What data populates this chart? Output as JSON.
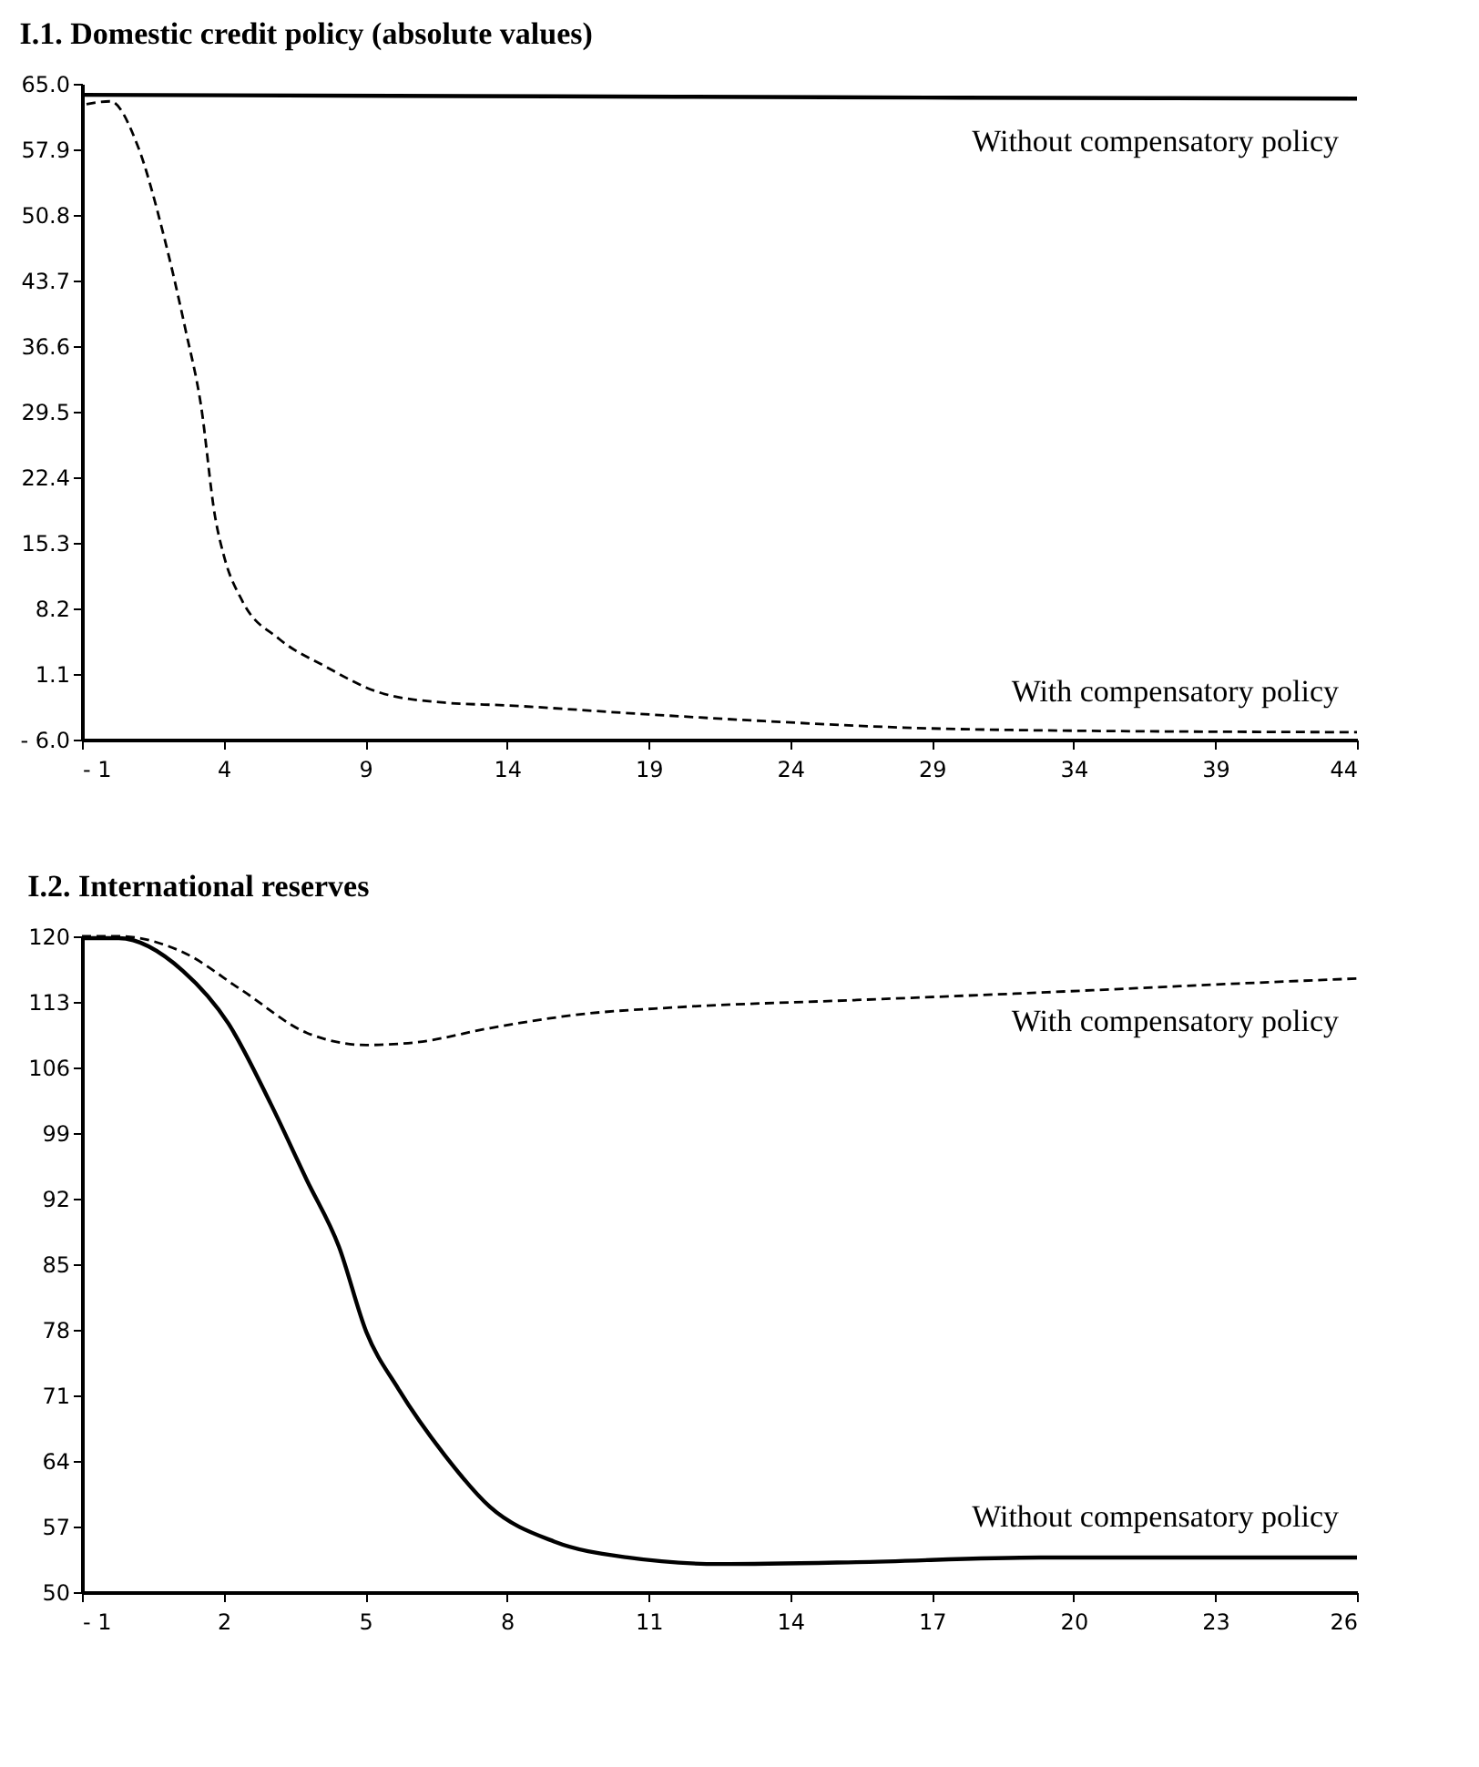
{
  "chart_data": [
    {
      "type": "line",
      "title": "I.1. Domestic credit policy (absolute values)",
      "xlim": [
        -1,
        44
      ],
      "xticks": [
        {
          "value": -1,
          "label": "- 1"
        },
        4,
        9,
        14,
        19,
        24,
        29,
        34,
        39,
        44
      ],
      "ylim": [
        -6,
        65
      ],
      "yticks": [
        {
          "value": -6,
          "label": "- 6.0"
        },
        1.1,
        8.2,
        15.3,
        22.4,
        29.5,
        36.6,
        43.7,
        50.8,
        57.9,
        {
          "value": 65,
          "label": "65.0"
        }
      ],
      "grid": false,
      "series": [
        {
          "name": "Without compensatory policy",
          "color": "#000000",
          "line_style": "solid",
          "x": [
            -1,
            10,
            20,
            30,
            44
          ],
          "values": [
            63.8,
            63.7,
            63.6,
            63.5,
            63.4
          ]
        },
        {
          "name": "With compensatory policy",
          "color": "#000000",
          "line_style": "dashed",
          "x": [
            -0.84,
            0,
            0.94,
            1.9,
            2.66,
            3.2,
            3.7,
            4.0,
            4.66,
            5.96,
            7.6,
            9.5,
            11.8,
            14,
            18.6,
            23.1,
            28,
            32.8,
            44
          ],
          "values": [
            62.8,
            63.1,
            58.5,
            48.4,
            38.3,
            30.2,
            18.1,
            14,
            9.0,
            4.9,
            1.9,
            -0.9,
            -2,
            -2.3,
            -3.2,
            -4,
            -4.7,
            -5,
            -5.2
          ]
        }
      ]
    },
    {
      "type": "line",
      "title": "I.2. International reserves",
      "xlim": [
        -1,
        26
      ],
      "xticks": [
        {
          "value": -1,
          "label": "- 1"
        },
        2,
        5,
        8,
        11,
        14,
        17,
        20,
        23,
        26
      ],
      "ylim": [
        50,
        120
      ],
      "yticks": [
        50,
        57,
        64,
        71,
        78,
        85,
        92,
        99,
        106,
        113,
        120
      ],
      "grid": false,
      "series": [
        {
          "name": "With compensatory policy",
          "color": "#000000",
          "line_style": "dashed",
          "x": [
            -1,
            -0.22,
            1.14,
            2.4,
            3.76,
            5.02,
            6.1,
            7.64,
            9.6,
            11.5,
            15.4,
            19.3,
            23.2,
            26
          ],
          "values": [
            120,
            120,
            118.3,
            114.2,
            109.7,
            108.4,
            108.7,
            110.2,
            111.7,
            112.4,
            113.2,
            114,
            114.9,
            115.5
          ]
        },
        {
          "name": "Without compensatory policy",
          "color": "#000000",
          "line_style": "solid",
          "x": [
            -1,
            -0.22,
            1.14,
            2.1,
            3.0,
            3.76,
            4.44,
            5.02,
            5.7,
            6.67,
            7.64,
            9.0,
            10.55,
            12.5,
            15.4,
            19.3,
            26
          ],
          "values": [
            119.8,
            119.8,
            116.3,
            110.7,
            102.1,
            94,
            86.9,
            77.8,
            71.7,
            64.7,
            59.1,
            55.4,
            53.7,
            53,
            53.2,
            53.7,
            53.7
          ]
        }
      ]
    }
  ]
}
